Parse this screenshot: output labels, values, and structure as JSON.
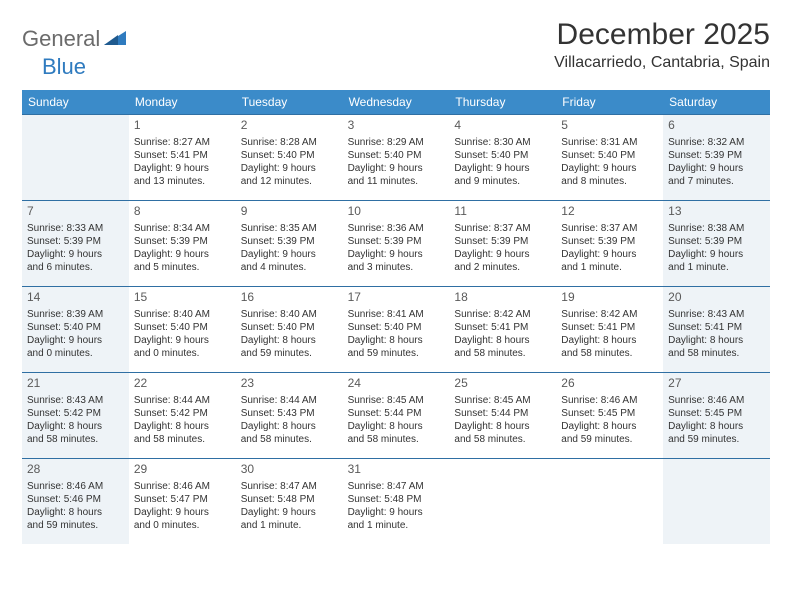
{
  "logo": {
    "general": "General",
    "blue": "Blue"
  },
  "header": {
    "month_title": "December 2025",
    "location": "Villacarriedo, Cantabria, Spain"
  },
  "colors": {
    "header_bg": "#3b8bc9",
    "header_text": "#ffffff",
    "rule": "#2f6fa3",
    "shaded_bg": "#eef3f7",
    "text": "#333333",
    "logo_gray": "#6b6b6b",
    "logo_blue": "#2f7bbf"
  },
  "weekdays": [
    "Sunday",
    "Monday",
    "Tuesday",
    "Wednesday",
    "Thursday",
    "Friday",
    "Saturday"
  ],
  "weeks": [
    [
      {
        "day": "",
        "sunrise": "",
        "sunset": "",
        "daylight1": "",
        "daylight2": "",
        "shaded": true
      },
      {
        "day": "1",
        "sunrise": "Sunrise: 8:27 AM",
        "sunset": "Sunset: 5:41 PM",
        "daylight1": "Daylight: 9 hours",
        "daylight2": "and 13 minutes.",
        "shaded": false
      },
      {
        "day": "2",
        "sunrise": "Sunrise: 8:28 AM",
        "sunset": "Sunset: 5:40 PM",
        "daylight1": "Daylight: 9 hours",
        "daylight2": "and 12 minutes.",
        "shaded": false
      },
      {
        "day": "3",
        "sunrise": "Sunrise: 8:29 AM",
        "sunset": "Sunset: 5:40 PM",
        "daylight1": "Daylight: 9 hours",
        "daylight2": "and 11 minutes.",
        "shaded": false
      },
      {
        "day": "4",
        "sunrise": "Sunrise: 8:30 AM",
        "sunset": "Sunset: 5:40 PM",
        "daylight1": "Daylight: 9 hours",
        "daylight2": "and 9 minutes.",
        "shaded": false
      },
      {
        "day": "5",
        "sunrise": "Sunrise: 8:31 AM",
        "sunset": "Sunset: 5:40 PM",
        "daylight1": "Daylight: 9 hours",
        "daylight2": "and 8 minutes.",
        "shaded": false
      },
      {
        "day": "6",
        "sunrise": "Sunrise: 8:32 AM",
        "sunset": "Sunset: 5:39 PM",
        "daylight1": "Daylight: 9 hours",
        "daylight2": "and 7 minutes.",
        "shaded": true
      }
    ],
    [
      {
        "day": "7",
        "sunrise": "Sunrise: 8:33 AM",
        "sunset": "Sunset: 5:39 PM",
        "daylight1": "Daylight: 9 hours",
        "daylight2": "and 6 minutes.",
        "shaded": true
      },
      {
        "day": "8",
        "sunrise": "Sunrise: 8:34 AM",
        "sunset": "Sunset: 5:39 PM",
        "daylight1": "Daylight: 9 hours",
        "daylight2": "and 5 minutes.",
        "shaded": false
      },
      {
        "day": "9",
        "sunrise": "Sunrise: 8:35 AM",
        "sunset": "Sunset: 5:39 PM",
        "daylight1": "Daylight: 9 hours",
        "daylight2": "and 4 minutes.",
        "shaded": false
      },
      {
        "day": "10",
        "sunrise": "Sunrise: 8:36 AM",
        "sunset": "Sunset: 5:39 PM",
        "daylight1": "Daylight: 9 hours",
        "daylight2": "and 3 minutes.",
        "shaded": false
      },
      {
        "day": "11",
        "sunrise": "Sunrise: 8:37 AM",
        "sunset": "Sunset: 5:39 PM",
        "daylight1": "Daylight: 9 hours",
        "daylight2": "and 2 minutes.",
        "shaded": false
      },
      {
        "day": "12",
        "sunrise": "Sunrise: 8:37 AM",
        "sunset": "Sunset: 5:39 PM",
        "daylight1": "Daylight: 9 hours",
        "daylight2": "and 1 minute.",
        "shaded": false
      },
      {
        "day": "13",
        "sunrise": "Sunrise: 8:38 AM",
        "sunset": "Sunset: 5:39 PM",
        "daylight1": "Daylight: 9 hours",
        "daylight2": "and 1 minute.",
        "shaded": true
      }
    ],
    [
      {
        "day": "14",
        "sunrise": "Sunrise: 8:39 AM",
        "sunset": "Sunset: 5:40 PM",
        "daylight1": "Daylight: 9 hours",
        "daylight2": "and 0 minutes.",
        "shaded": true
      },
      {
        "day": "15",
        "sunrise": "Sunrise: 8:40 AM",
        "sunset": "Sunset: 5:40 PM",
        "daylight1": "Daylight: 9 hours",
        "daylight2": "and 0 minutes.",
        "shaded": false
      },
      {
        "day": "16",
        "sunrise": "Sunrise: 8:40 AM",
        "sunset": "Sunset: 5:40 PM",
        "daylight1": "Daylight: 8 hours",
        "daylight2": "and 59 minutes.",
        "shaded": false
      },
      {
        "day": "17",
        "sunrise": "Sunrise: 8:41 AM",
        "sunset": "Sunset: 5:40 PM",
        "daylight1": "Daylight: 8 hours",
        "daylight2": "and 59 minutes.",
        "shaded": false
      },
      {
        "day": "18",
        "sunrise": "Sunrise: 8:42 AM",
        "sunset": "Sunset: 5:41 PM",
        "daylight1": "Daylight: 8 hours",
        "daylight2": "and 58 minutes.",
        "shaded": false
      },
      {
        "day": "19",
        "sunrise": "Sunrise: 8:42 AM",
        "sunset": "Sunset: 5:41 PM",
        "daylight1": "Daylight: 8 hours",
        "daylight2": "and 58 minutes.",
        "shaded": false
      },
      {
        "day": "20",
        "sunrise": "Sunrise: 8:43 AM",
        "sunset": "Sunset: 5:41 PM",
        "daylight1": "Daylight: 8 hours",
        "daylight2": "and 58 minutes.",
        "shaded": true
      }
    ],
    [
      {
        "day": "21",
        "sunrise": "Sunrise: 8:43 AM",
        "sunset": "Sunset: 5:42 PM",
        "daylight1": "Daylight: 8 hours",
        "daylight2": "and 58 minutes.",
        "shaded": true
      },
      {
        "day": "22",
        "sunrise": "Sunrise: 8:44 AM",
        "sunset": "Sunset: 5:42 PM",
        "daylight1": "Daylight: 8 hours",
        "daylight2": "and 58 minutes.",
        "shaded": false
      },
      {
        "day": "23",
        "sunrise": "Sunrise: 8:44 AM",
        "sunset": "Sunset: 5:43 PM",
        "daylight1": "Daylight: 8 hours",
        "daylight2": "and 58 minutes.",
        "shaded": false
      },
      {
        "day": "24",
        "sunrise": "Sunrise: 8:45 AM",
        "sunset": "Sunset: 5:44 PM",
        "daylight1": "Daylight: 8 hours",
        "daylight2": "and 58 minutes.",
        "shaded": false
      },
      {
        "day": "25",
        "sunrise": "Sunrise: 8:45 AM",
        "sunset": "Sunset: 5:44 PM",
        "daylight1": "Daylight: 8 hours",
        "daylight2": "and 58 minutes.",
        "shaded": false
      },
      {
        "day": "26",
        "sunrise": "Sunrise: 8:46 AM",
        "sunset": "Sunset: 5:45 PM",
        "daylight1": "Daylight: 8 hours",
        "daylight2": "and 59 minutes.",
        "shaded": false
      },
      {
        "day": "27",
        "sunrise": "Sunrise: 8:46 AM",
        "sunset": "Sunset: 5:45 PM",
        "daylight1": "Daylight: 8 hours",
        "daylight2": "and 59 minutes.",
        "shaded": true
      }
    ],
    [
      {
        "day": "28",
        "sunrise": "Sunrise: 8:46 AM",
        "sunset": "Sunset: 5:46 PM",
        "daylight1": "Daylight: 8 hours",
        "daylight2": "and 59 minutes.",
        "shaded": true
      },
      {
        "day": "29",
        "sunrise": "Sunrise: 8:46 AM",
        "sunset": "Sunset: 5:47 PM",
        "daylight1": "Daylight: 9 hours",
        "daylight2": "and 0 minutes.",
        "shaded": false
      },
      {
        "day": "30",
        "sunrise": "Sunrise: 8:47 AM",
        "sunset": "Sunset: 5:48 PM",
        "daylight1": "Daylight: 9 hours",
        "daylight2": "and 1 minute.",
        "shaded": false
      },
      {
        "day": "31",
        "sunrise": "Sunrise: 8:47 AM",
        "sunset": "Sunset: 5:48 PM",
        "daylight1": "Daylight: 9 hours",
        "daylight2": "and 1 minute.",
        "shaded": false
      },
      {
        "day": "",
        "sunrise": "",
        "sunset": "",
        "daylight1": "",
        "daylight2": "",
        "shaded": false
      },
      {
        "day": "",
        "sunrise": "",
        "sunset": "",
        "daylight1": "",
        "daylight2": "",
        "shaded": false
      },
      {
        "day": "",
        "sunrise": "",
        "sunset": "",
        "daylight1": "",
        "daylight2": "",
        "shaded": true
      }
    ]
  ]
}
